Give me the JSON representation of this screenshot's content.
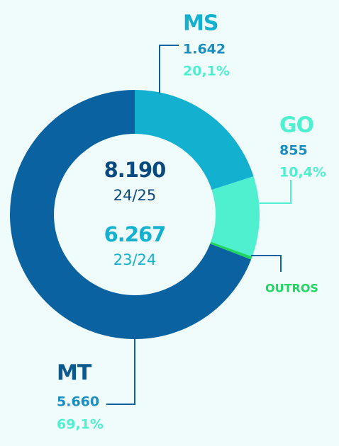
{
  "chart_data": {
    "type": "donut",
    "categories": [
      "MS",
      "GO",
      "OUTROS",
      "MT"
    ],
    "values": [
      1642,
      855,
      33,
      5660
    ],
    "value_labels": [
      "1.642",
      "855",
      null,
      "5.660"
    ],
    "percents": [
      20.1,
      10.4,
      null,
      69.1
    ],
    "percent_labels": [
      "20,1%",
      "10,4%",
      null,
      "69,1%"
    ],
    "colors": [
      "#14b0d0",
      "#4ef0d0",
      "#1ed760",
      "#0a62a0"
    ],
    "center": [
      {
        "value": 8190,
        "label": "8.190",
        "period": "24/25"
      },
      {
        "value": 6267,
        "label": "6.267",
        "period": "23/24"
      }
    ]
  }
}
